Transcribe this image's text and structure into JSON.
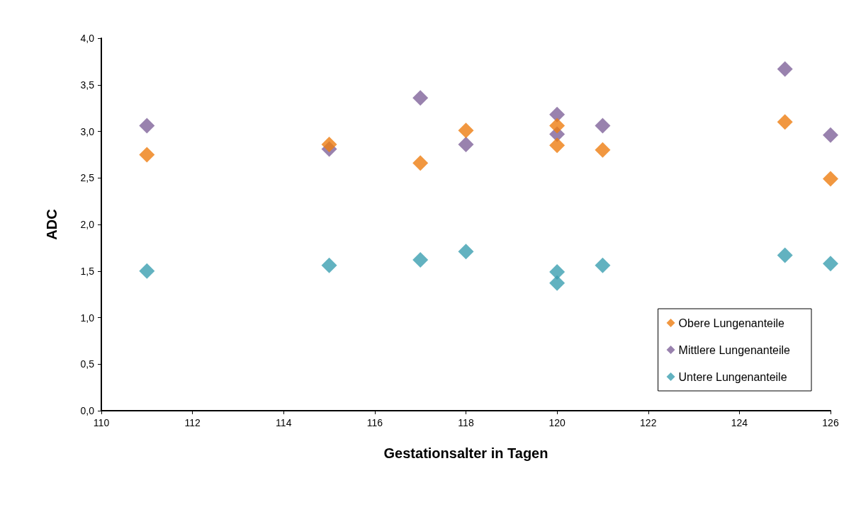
{
  "chart_data": {
    "type": "scatter",
    "xlabel": "Gestationsalter in Tagen",
    "ylabel": "ADC",
    "x": [
      111,
      115,
      117,
      118,
      120,
      120,
      121,
      125,
      126
    ],
    "series": [
      {
        "name": "Obere Lungenanteile",
        "color": "#ed7d10",
        "values": [
          2.75,
          2.86,
          2.66,
          3.01,
          3.06,
          2.85,
          2.8,
          3.1,
          2.49
        ]
      },
      {
        "name": "Mittlere Lungenanteile",
        "color": "#7f639a",
        "values": [
          3.06,
          2.81,
          3.36,
          2.86,
          3.18,
          2.97,
          3.06,
          3.67,
          2.96
        ]
      },
      {
        "name": "Untere Lungenanteile",
        "color": "#3b9fb0",
        "values": [
          1.5,
          1.56,
          1.62,
          1.71,
          1.37,
          1.49,
          1.56,
          1.67,
          1.58
        ]
      }
    ],
    "xlim": [
      110,
      126
    ],
    "xticks": [
      110,
      112,
      114,
      116,
      118,
      120,
      122,
      124,
      126
    ],
    "ylim": [
      0,
      4
    ],
    "yticks": [
      {
        "value": 0,
        "label": "0,0"
      },
      {
        "value": 0.5,
        "label": "0,5"
      },
      {
        "value": 1,
        "label": "1,0"
      },
      {
        "value": 1.5,
        "label": "1,5"
      },
      {
        "value": 2,
        "label": "2,0"
      },
      {
        "value": 2.5,
        "label": "2,5"
      },
      {
        "value": 3,
        "label": "3,0"
      },
      {
        "value": 3.5,
        "label": "3,5"
      },
      {
        "value": 4,
        "label": "4,0"
      }
    ],
    "grid": false,
    "legend": "bottom right",
    "marker": "diamond"
  }
}
